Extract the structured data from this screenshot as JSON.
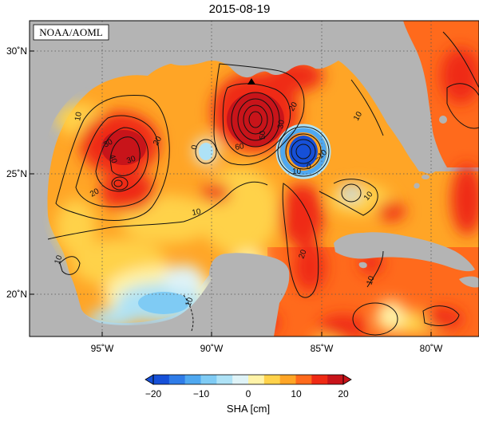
{
  "title": "2015-08-19",
  "credit": "NOAA/AOML",
  "colorbar": {
    "label": "SHA [cm]",
    "ticks": [
      "−20",
      "−10",
      "0",
      "10",
      "20"
    ],
    "colors": [
      "#1650d8",
      "#2f7ce8",
      "#4fa8f0",
      "#7fcbf4",
      "#aee2f6",
      "#dff3f7",
      "#fff3a8",
      "#ffd24a",
      "#ffa526",
      "#ff6a1c",
      "#ef2a14",
      "#c8141a"
    ]
  },
  "map": {
    "lon_labels": [
      "95˚W",
      "90˚W",
      "85˚W",
      "80˚W"
    ],
    "lat_labels": [
      "30˚N",
      "25˚N",
      "20˚N"
    ],
    "contour_labels": [
      "10",
      "20",
      "30",
      "10",
      "20",
      "30",
      "40",
      "50",
      "60",
      "30",
      "20",
      "0",
      "10",
      "0",
      "−10",
      "10",
      "10",
      "20",
      "10",
      "10",
      "10"
    ],
    "land_color": "#b4b4b4",
    "marker": "triangle"
  }
}
